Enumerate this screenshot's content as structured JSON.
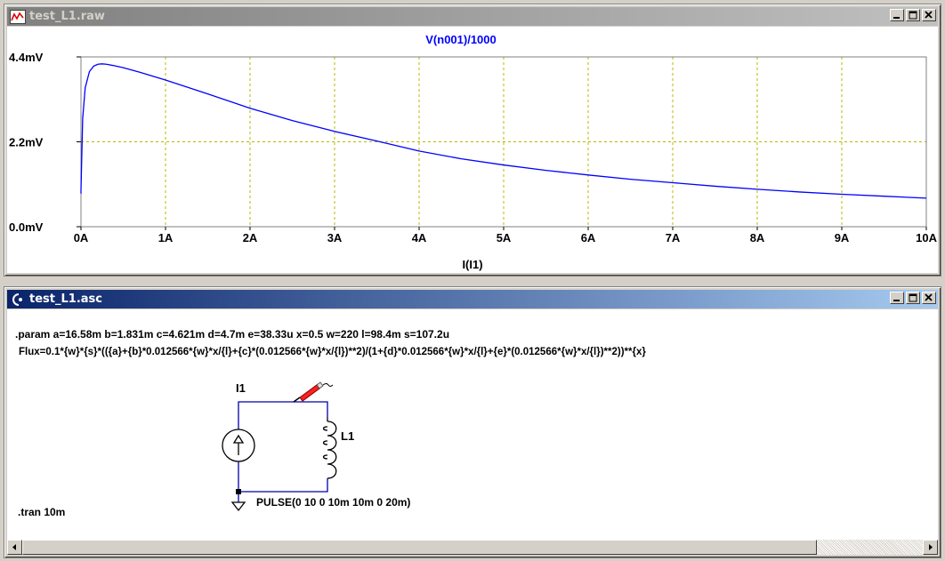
{
  "plot_window": {
    "title": "test_L1.raw",
    "buttons": {
      "minimize": "minimize",
      "maximize": "maximize",
      "close": "close"
    }
  },
  "schematic_window": {
    "title": "test_L1.asc",
    "param_line": ".param a=16.58m b=1.831m c=4.621m d=4.7m e=38.33u x=0.5 w=220 l=98.4m s=107.2u",
    "flux_line": "Flux=0.1*{w}*{s}*(({a}+{b}*0.012566*{w}*x/{l}+{c}*(0.012566*{w}*x/{l})**2)/(1+{d}*0.012566*{w}*x/{l}+{e}*(0.012566*{w}*x/{l})**2))**{x}",
    "source_label": "I1",
    "inductor_label": "L1",
    "pulse_label": "PULSE(0 10 0 10m 10m 0 20m)",
    "tran_directive": ".tran 10m"
  },
  "chart_data": {
    "type": "line",
    "title": "V(n001)/1000",
    "xlabel": "I(I1)",
    "ylabel": "",
    "xlim": [
      0,
      10
    ],
    "ylim": [
      0,
      4.4
    ],
    "x_ticks": [
      "0A",
      "1A",
      "2A",
      "3A",
      "4A",
      "5A",
      "6A",
      "7A",
      "8A",
      "9A",
      "10A"
    ],
    "y_ticks": [
      "0.0mV",
      "2.2mV",
      "4.4mV"
    ],
    "grid": true,
    "series": [
      {
        "name": "V(n001)/1000",
        "color": "#0000ff",
        "x": [
          0,
          0.02,
          0.05,
          0.1,
          0.15,
          0.2,
          0.25,
          0.3,
          0.4,
          0.5,
          0.7,
          1.0,
          1.5,
          2.0,
          2.5,
          3.0,
          3.5,
          4.0,
          4.5,
          5.0,
          5.5,
          6.0,
          6.5,
          7.0,
          7.5,
          8.0,
          8.5,
          9.0,
          9.5,
          10.0
        ],
        "y": [
          0.95,
          2.8,
          3.6,
          4.02,
          4.16,
          4.21,
          4.22,
          4.21,
          4.17,
          4.12,
          4.0,
          3.8,
          3.44,
          3.07,
          2.75,
          2.47,
          2.22,
          1.96,
          1.76,
          1.6,
          1.46,
          1.34,
          1.23,
          1.14,
          1.05,
          0.97,
          0.9,
          0.84,
          0.79,
          0.74
        ]
      }
    ]
  }
}
